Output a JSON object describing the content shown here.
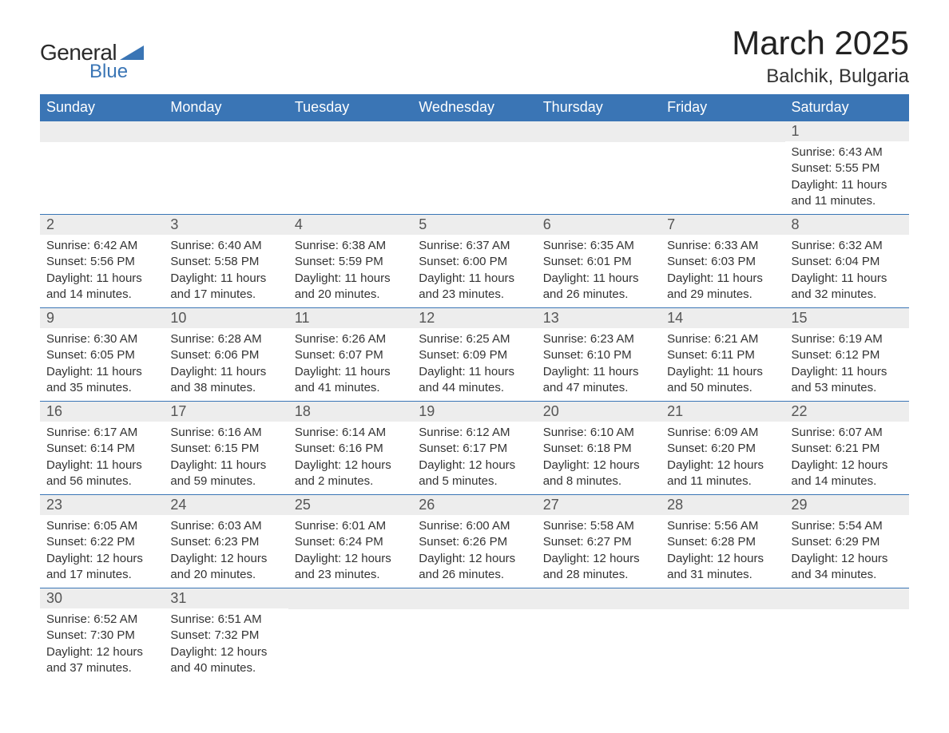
{
  "brand": {
    "word1": "General",
    "word2": "Blue",
    "triangle_color": "#3a75b5",
    "text_color_dark": "#2a2a2a",
    "text_color_blue": "#3a75b5"
  },
  "title": "March 2025",
  "location": "Balchik, Bulgaria",
  "colors": {
    "header_bg": "#3a75b5",
    "header_text": "#ffffff",
    "daynum_bg": "#ededed",
    "daynum_text": "#555555",
    "body_text": "#333333",
    "row_border": "#3a75b5",
    "page_bg": "#ffffff"
  },
  "typography": {
    "title_fontsize": 42,
    "location_fontsize": 24,
    "dayheader_fontsize": 18,
    "daynum_fontsize": 18,
    "body_fontsize": 15,
    "font_family": "Arial, Helvetica, sans-serif"
  },
  "day_headers": [
    "Sunday",
    "Monday",
    "Tuesday",
    "Wednesday",
    "Thursday",
    "Friday",
    "Saturday"
  ],
  "weeks": [
    [
      null,
      null,
      null,
      null,
      null,
      null,
      {
        "n": "1",
        "sunrise": "Sunrise: 6:43 AM",
        "sunset": "Sunset: 5:55 PM",
        "dl1": "Daylight: 11 hours",
        "dl2": "and 11 minutes."
      }
    ],
    [
      {
        "n": "2",
        "sunrise": "Sunrise: 6:42 AM",
        "sunset": "Sunset: 5:56 PM",
        "dl1": "Daylight: 11 hours",
        "dl2": "and 14 minutes."
      },
      {
        "n": "3",
        "sunrise": "Sunrise: 6:40 AM",
        "sunset": "Sunset: 5:58 PM",
        "dl1": "Daylight: 11 hours",
        "dl2": "and 17 minutes."
      },
      {
        "n": "4",
        "sunrise": "Sunrise: 6:38 AM",
        "sunset": "Sunset: 5:59 PM",
        "dl1": "Daylight: 11 hours",
        "dl2": "and 20 minutes."
      },
      {
        "n": "5",
        "sunrise": "Sunrise: 6:37 AM",
        "sunset": "Sunset: 6:00 PM",
        "dl1": "Daylight: 11 hours",
        "dl2": "and 23 minutes."
      },
      {
        "n": "6",
        "sunrise": "Sunrise: 6:35 AM",
        "sunset": "Sunset: 6:01 PM",
        "dl1": "Daylight: 11 hours",
        "dl2": "and 26 minutes."
      },
      {
        "n": "7",
        "sunrise": "Sunrise: 6:33 AM",
        "sunset": "Sunset: 6:03 PM",
        "dl1": "Daylight: 11 hours",
        "dl2": "and 29 minutes."
      },
      {
        "n": "8",
        "sunrise": "Sunrise: 6:32 AM",
        "sunset": "Sunset: 6:04 PM",
        "dl1": "Daylight: 11 hours",
        "dl2": "and 32 minutes."
      }
    ],
    [
      {
        "n": "9",
        "sunrise": "Sunrise: 6:30 AM",
        "sunset": "Sunset: 6:05 PM",
        "dl1": "Daylight: 11 hours",
        "dl2": "and 35 minutes."
      },
      {
        "n": "10",
        "sunrise": "Sunrise: 6:28 AM",
        "sunset": "Sunset: 6:06 PM",
        "dl1": "Daylight: 11 hours",
        "dl2": "and 38 minutes."
      },
      {
        "n": "11",
        "sunrise": "Sunrise: 6:26 AM",
        "sunset": "Sunset: 6:07 PM",
        "dl1": "Daylight: 11 hours",
        "dl2": "and 41 minutes."
      },
      {
        "n": "12",
        "sunrise": "Sunrise: 6:25 AM",
        "sunset": "Sunset: 6:09 PM",
        "dl1": "Daylight: 11 hours",
        "dl2": "and 44 minutes."
      },
      {
        "n": "13",
        "sunrise": "Sunrise: 6:23 AM",
        "sunset": "Sunset: 6:10 PM",
        "dl1": "Daylight: 11 hours",
        "dl2": "and 47 minutes."
      },
      {
        "n": "14",
        "sunrise": "Sunrise: 6:21 AM",
        "sunset": "Sunset: 6:11 PM",
        "dl1": "Daylight: 11 hours",
        "dl2": "and 50 minutes."
      },
      {
        "n": "15",
        "sunrise": "Sunrise: 6:19 AM",
        "sunset": "Sunset: 6:12 PM",
        "dl1": "Daylight: 11 hours",
        "dl2": "and 53 minutes."
      }
    ],
    [
      {
        "n": "16",
        "sunrise": "Sunrise: 6:17 AM",
        "sunset": "Sunset: 6:14 PM",
        "dl1": "Daylight: 11 hours",
        "dl2": "and 56 minutes."
      },
      {
        "n": "17",
        "sunrise": "Sunrise: 6:16 AM",
        "sunset": "Sunset: 6:15 PM",
        "dl1": "Daylight: 11 hours",
        "dl2": "and 59 minutes."
      },
      {
        "n": "18",
        "sunrise": "Sunrise: 6:14 AM",
        "sunset": "Sunset: 6:16 PM",
        "dl1": "Daylight: 12 hours",
        "dl2": "and 2 minutes."
      },
      {
        "n": "19",
        "sunrise": "Sunrise: 6:12 AM",
        "sunset": "Sunset: 6:17 PM",
        "dl1": "Daylight: 12 hours",
        "dl2": "and 5 minutes."
      },
      {
        "n": "20",
        "sunrise": "Sunrise: 6:10 AM",
        "sunset": "Sunset: 6:18 PM",
        "dl1": "Daylight: 12 hours",
        "dl2": "and 8 minutes."
      },
      {
        "n": "21",
        "sunrise": "Sunrise: 6:09 AM",
        "sunset": "Sunset: 6:20 PM",
        "dl1": "Daylight: 12 hours",
        "dl2": "and 11 minutes."
      },
      {
        "n": "22",
        "sunrise": "Sunrise: 6:07 AM",
        "sunset": "Sunset: 6:21 PM",
        "dl1": "Daylight: 12 hours",
        "dl2": "and 14 minutes."
      }
    ],
    [
      {
        "n": "23",
        "sunrise": "Sunrise: 6:05 AM",
        "sunset": "Sunset: 6:22 PM",
        "dl1": "Daylight: 12 hours",
        "dl2": "and 17 minutes."
      },
      {
        "n": "24",
        "sunrise": "Sunrise: 6:03 AM",
        "sunset": "Sunset: 6:23 PM",
        "dl1": "Daylight: 12 hours",
        "dl2": "and 20 minutes."
      },
      {
        "n": "25",
        "sunrise": "Sunrise: 6:01 AM",
        "sunset": "Sunset: 6:24 PM",
        "dl1": "Daylight: 12 hours",
        "dl2": "and 23 minutes."
      },
      {
        "n": "26",
        "sunrise": "Sunrise: 6:00 AM",
        "sunset": "Sunset: 6:26 PM",
        "dl1": "Daylight: 12 hours",
        "dl2": "and 26 minutes."
      },
      {
        "n": "27",
        "sunrise": "Sunrise: 5:58 AM",
        "sunset": "Sunset: 6:27 PM",
        "dl1": "Daylight: 12 hours",
        "dl2": "and 28 minutes."
      },
      {
        "n": "28",
        "sunrise": "Sunrise: 5:56 AM",
        "sunset": "Sunset: 6:28 PM",
        "dl1": "Daylight: 12 hours",
        "dl2": "and 31 minutes."
      },
      {
        "n": "29",
        "sunrise": "Sunrise: 5:54 AM",
        "sunset": "Sunset: 6:29 PM",
        "dl1": "Daylight: 12 hours",
        "dl2": "and 34 minutes."
      }
    ],
    [
      {
        "n": "30",
        "sunrise": "Sunrise: 6:52 AM",
        "sunset": "Sunset: 7:30 PM",
        "dl1": "Daylight: 12 hours",
        "dl2": "and 37 minutes."
      },
      {
        "n": "31",
        "sunrise": "Sunrise: 6:51 AM",
        "sunset": "Sunset: 7:32 PM",
        "dl1": "Daylight: 12 hours",
        "dl2": "and 40 minutes."
      },
      null,
      null,
      null,
      null,
      null
    ]
  ]
}
